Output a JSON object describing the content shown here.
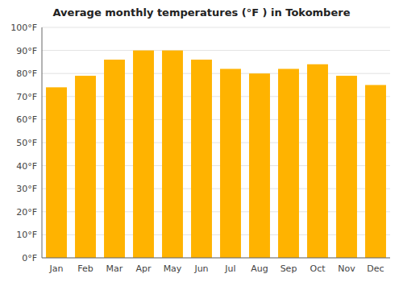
{
  "chart_data": {
    "type": "bar",
    "title": "Average monthly temperatures (°F ) in Tokombere",
    "categories": [
      "Jan",
      "Feb",
      "Mar",
      "Apr",
      "May",
      "Jun",
      "Jul",
      "Aug",
      "Sep",
      "Oct",
      "Nov",
      "Dec"
    ],
    "values": [
      74,
      79,
      86,
      90,
      90,
      86,
      82,
      80,
      82,
      84,
      79,
      75
    ],
    "color": "#FFB300",
    "ylim": [
      0,
      100
    ],
    "yticks": [
      {
        "value": 0,
        "label": "0°F"
      },
      {
        "value": 10,
        "label": "10°F"
      },
      {
        "value": 20,
        "label": "20°F"
      },
      {
        "value": 30,
        "label": "30°F"
      },
      {
        "value": 40,
        "label": "40°F"
      },
      {
        "value": 50,
        "label": "50°F"
      },
      {
        "value": 60,
        "label": "60°F"
      },
      {
        "value": 70,
        "label": "70°F"
      },
      {
        "value": 80,
        "label": "80°F"
      },
      {
        "value": 90,
        "label": "90°F"
      },
      {
        "value": 100,
        "label": "100°F"
      }
    ],
    "grid": true
  }
}
